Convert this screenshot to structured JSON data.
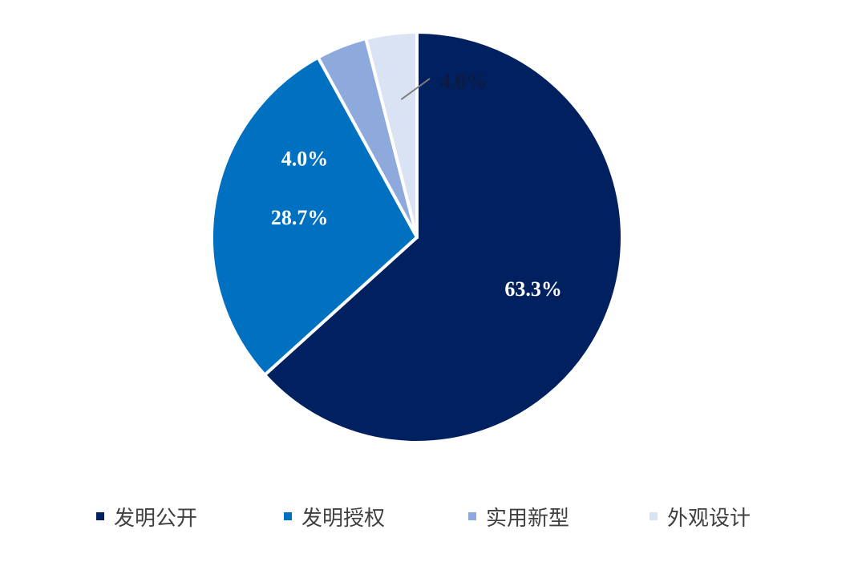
{
  "chart_data": {
    "type": "pie",
    "title": "",
    "slices": [
      {
        "name": "发明公开",
        "value": 63.3,
        "label": "63.3%",
        "color": "#002060"
      },
      {
        "name": "发明授权",
        "value": 28.7,
        "label": "28.7%",
        "color": "#0070C0"
      },
      {
        "name": "实用新型",
        "value": 4.0,
        "label": "4.0%",
        "color": "#8EA9DB"
      },
      {
        "name": "外观设计",
        "value": 4.0,
        "label": "4.0%",
        "color": "#DAE3F3"
      }
    ],
    "start_angle_deg": 0,
    "direction": "clockwise",
    "legend_position": "bottom"
  },
  "legend": {
    "items": [
      {
        "label": "发明公开",
        "color": "#002060"
      },
      {
        "label": "发明授权",
        "color": "#0070C0"
      },
      {
        "label": "实用新型",
        "color": "#8EA9DB"
      },
      {
        "label": "外观设计",
        "color": "#DAE3F3"
      }
    ]
  }
}
